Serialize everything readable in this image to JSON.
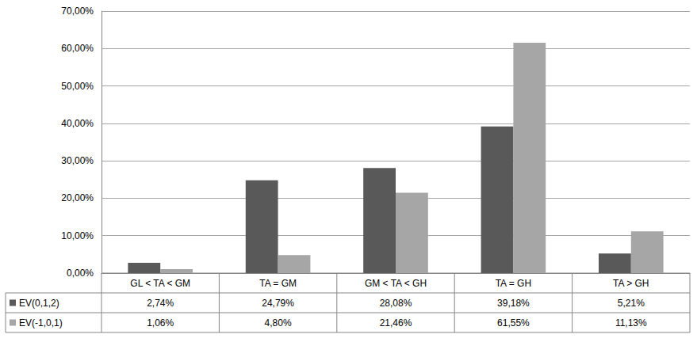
{
  "chart_data": {
    "type": "bar",
    "categories": [
      "GL < TA < GM",
      "TA = GM",
      "GM < TA < GH",
      "TA = GH",
      "TA > GH"
    ],
    "series": [
      {
        "name": "EV(0,1,2)",
        "color": "#595959",
        "values": [
          2.74,
          24.79,
          28.08,
          39.18,
          5.21
        ],
        "value_labels": [
          "2,74%",
          "24,79%",
          "28,08%",
          "39,18%",
          "5,21%"
        ]
      },
      {
        "name": "EV(-1,0,1)",
        "color": "#a6a6a6",
        "values": [
          1.06,
          4.8,
          21.46,
          61.55,
          11.13
        ],
        "value_labels": [
          "1,06%",
          "4,80%",
          "21,46%",
          "61,55%",
          "11,13%"
        ]
      }
    ],
    "ylim": [
      0,
      70
    ],
    "yticks": [
      {
        "value": 0,
        "label": "0,00%"
      },
      {
        "value": 10,
        "label": "10,00%"
      },
      {
        "value": 20,
        "label": "20,00%"
      },
      {
        "value": 30,
        "label": "30,00%"
      },
      {
        "value": 40,
        "label": "40,00%"
      },
      {
        "value": 50,
        "label": "50,00%"
      },
      {
        "value": 60,
        "label": "60,00%"
      },
      {
        "value": 70,
        "label": "70,00%"
      }
    ],
    "grid": true
  }
}
